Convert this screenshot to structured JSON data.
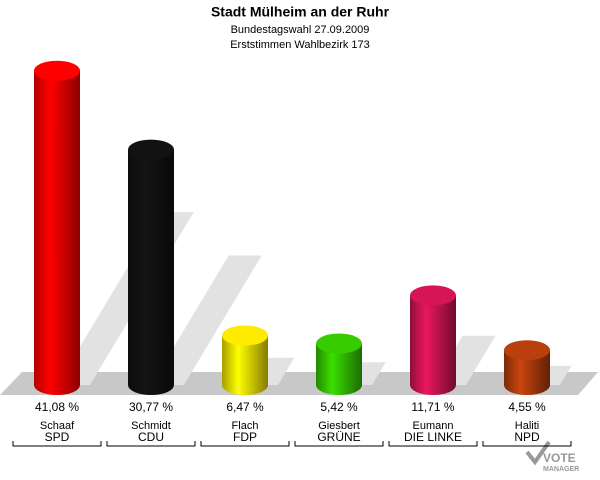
{
  "chart_data": {
    "type": "bar",
    "title": "Stadt Mülheim an der Ruhr",
    "subtitle": [
      "Bundestagswahl 27.09.2009",
      "Erststimmen Wahlbezirk 173"
    ],
    "categories": [
      "SPD",
      "CDU",
      "FDP",
      "GRÜNE",
      "DIE LINKE",
      "NPD"
    ],
    "candidates": [
      "Schaaf",
      "Schmidt",
      "Flach",
      "Giesbert",
      "Eumann",
      "Haliti"
    ],
    "values": [
      41.08,
      30.77,
      6.47,
      5.42,
      11.71,
      4.55
    ],
    "value_labels": [
      "41,08 %",
      "30,77 %",
      "6,47 %",
      "5,42 %",
      "11,71 %",
      "4,55 %"
    ],
    "colors": [
      "#ff0000",
      "#111111",
      "#f2e000",
      "#33c200",
      "#cc1452",
      "#b03c0c"
    ],
    "logo": [
      "VOTE",
      "MANAGER"
    ]
  }
}
